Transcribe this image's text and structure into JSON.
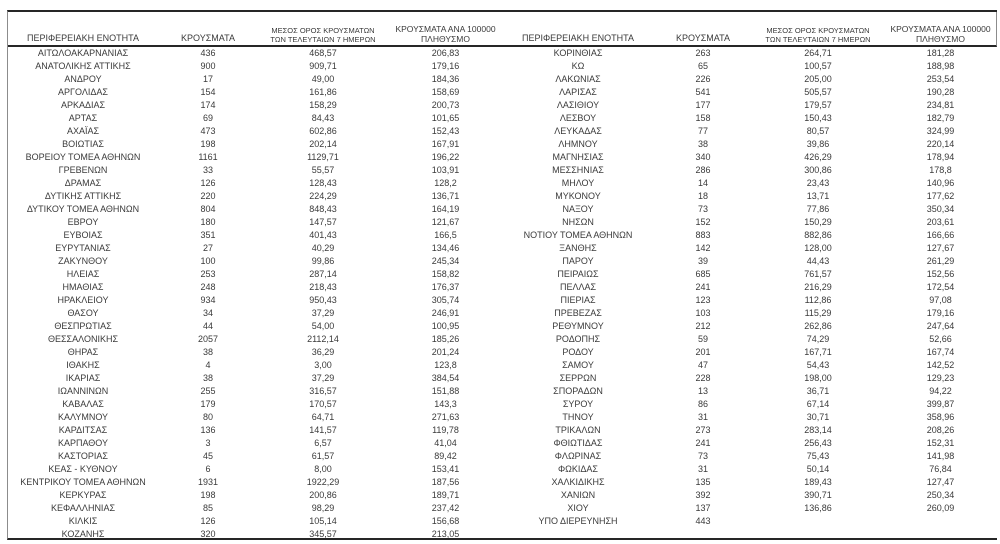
{
  "colors": {
    "background": "#ffffff",
    "text": "#3a3a3a",
    "border_heavy": "#262626",
    "border_light": "#8c8c8c"
  },
  "table": {
    "headers": {
      "region": "ΠΕΡΙΦΕΡΕΙΑΚΗ ΕΝΟΤΗΤΑ",
      "cases": "ΚΡΟΥΣΜΑΤΑ",
      "avg7_line1": "ΜΕΣΟΣ ΟΡΟΣ ΚΡΟΥΣΜΑΤΩΝ",
      "avg7_line2": "ΤΩΝ ΤΕΛΕΥΤΑΙΩΝ 7 ΗΜΕΡΩΝ",
      "per100k_line1": "ΚΡΟΥΣΜΑΤΑ ΑΝΑ 100000",
      "per100k_line2": "ΠΛΗΘΥΣΜΟ"
    },
    "left_rows": [
      [
        "ΑΙΤΩΛΟΑΚΑΡΝΑΝΙΑΣ",
        "436",
        "468,57",
        "206,83"
      ],
      [
        "ΑΝΑΤΟΛΙΚΗΣ ΑΤΤΙΚΗΣ",
        "900",
        "909,71",
        "179,16"
      ],
      [
        "ΑΝΔΡΟΥ",
        "17",
        "49,00",
        "184,36"
      ],
      [
        "ΑΡΓΟΛΙΔΑΣ",
        "154",
        "161,86",
        "158,69"
      ],
      [
        "ΑΡΚΑΔΙΑΣ",
        "174",
        "158,29",
        "200,73"
      ],
      [
        "ΑΡΤΑΣ",
        "69",
        "84,43",
        "101,65"
      ],
      [
        "ΑΧΑΪΑΣ",
        "473",
        "602,86",
        "152,43"
      ],
      [
        "ΒΟΙΩΤΙΑΣ",
        "198",
        "202,14",
        "167,91"
      ],
      [
        "ΒΟΡΕΙΟΥ ΤΟΜΕΑ ΑΘΗΝΩΝ",
        "1161",
        "1129,71",
        "196,22"
      ],
      [
        "ΓΡΕΒΕΝΩΝ",
        "33",
        "55,57",
        "103,91"
      ],
      [
        "ΔΡΑΜΑΣ",
        "126",
        "128,43",
        "128,2"
      ],
      [
        "ΔΥΤΙΚΗΣ ΑΤΤΙΚΗΣ",
        "220",
        "224,29",
        "136,71"
      ],
      [
        "ΔΥΤΙΚΟΥ ΤΟΜΕΑ ΑΘΗΝΩΝ",
        "804",
        "848,43",
        "164,19"
      ],
      [
        "ΕΒΡΟΥ",
        "180",
        "147,57",
        "121,67"
      ],
      [
        "ΕΥΒΟΙΑΣ",
        "351",
        "401,43",
        "166,5"
      ],
      [
        "ΕΥΡΥΤΑΝΙΑΣ",
        "27",
        "40,29",
        "134,46"
      ],
      [
        "ΖΑΚΥΝΘΟΥ",
        "100",
        "99,86",
        "245,34"
      ],
      [
        "ΗΛΕΙΑΣ",
        "253",
        "287,14",
        "158,82"
      ],
      [
        "ΗΜΑΘΙΑΣ",
        "248",
        "218,43",
        "176,37"
      ],
      [
        "ΗΡΑΚΛΕΙΟΥ",
        "934",
        "950,43",
        "305,74"
      ],
      [
        "ΘΑΣΟΥ",
        "34",
        "37,29",
        "246,91"
      ],
      [
        "ΘΕΣΠΡΩΤΙΑΣ",
        "44",
        "54,00",
        "100,95"
      ],
      [
        "ΘΕΣΣΑΛΟΝΙΚΗΣ",
        "2057",
        "2112,14",
        "185,26"
      ],
      [
        "ΘΗΡΑΣ",
        "38",
        "36,29",
        "201,24"
      ],
      [
        "ΙΘΑΚΗΣ",
        "4",
        "3,00",
        "123,8"
      ],
      [
        "ΙΚΑΡΙΑΣ",
        "38",
        "37,29",
        "384,54"
      ],
      [
        "ΙΩΑΝΝΙΝΩΝ",
        "255",
        "316,57",
        "151,88"
      ],
      [
        "ΚΑΒΑΛΑΣ",
        "179",
        "170,57",
        "143,3"
      ],
      [
        "ΚΑΛΥΜΝΟΥ",
        "80",
        "64,71",
        "271,63"
      ],
      [
        "ΚΑΡΔΙΤΣΑΣ",
        "136",
        "141,57",
        "119,78"
      ],
      [
        "ΚΑΡΠΑΘΟΥ",
        "3",
        "6,57",
        "41,04"
      ],
      [
        "ΚΑΣΤΟΡΙΑΣ",
        "45",
        "61,57",
        "89,42"
      ],
      [
        "ΚΕΑΣ - ΚΥΘΝΟΥ",
        "6",
        "8,00",
        "153,41"
      ],
      [
        "ΚΕΝΤΡΙΚΟΥ ΤΟΜΕΑ ΑΘΗΝΩΝ",
        "1931",
        "1922,29",
        "187,56"
      ],
      [
        "ΚΕΡΚΥΡΑΣ",
        "198",
        "200,86",
        "189,71"
      ],
      [
        "ΚΕΦΑΛΛΗΝΙΑΣ",
        "85",
        "98,29",
        "237,42"
      ],
      [
        "ΚΙΛΚΙΣ",
        "126",
        "105,14",
        "156,68"
      ],
      [
        "ΚΟΖΑΝΗΣ",
        "320",
        "345,57",
        "213,05"
      ]
    ],
    "right_rows": [
      [
        "ΚΟΡΙΝΘΙΑΣ",
        "263",
        "264,71",
        "181,28"
      ],
      [
        "ΚΩ",
        "65",
        "100,57",
        "188,98"
      ],
      [
        "ΛΑΚΩΝΙΑΣ",
        "226",
        "205,00",
        "253,54"
      ],
      [
        "ΛΑΡΙΣΑΣ",
        "541",
        "505,57",
        "190,28"
      ],
      [
        "ΛΑΣΙΘΙΟΥ",
        "177",
        "179,57",
        "234,81"
      ],
      [
        "ΛΕΣΒΟΥ",
        "158",
        "150,43",
        "182,79"
      ],
      [
        "ΛΕΥΚΑΔΑΣ",
        "77",
        "80,57",
        "324,99"
      ],
      [
        "ΛΗΜΝΟΥ",
        "38",
        "39,86",
        "220,14"
      ],
      [
        "ΜΑΓΝΗΣΙΑΣ",
        "340",
        "426,29",
        "178,94"
      ],
      [
        "ΜΕΣΣΗΝΙΑΣ",
        "286",
        "300,86",
        "178,8"
      ],
      [
        "ΜΗΛΟΥ",
        "14",
        "23,43",
        "140,96"
      ],
      [
        "ΜΥΚΟΝΟΥ",
        "18",
        "13,71",
        "177,62"
      ],
      [
        "ΝΑΞΟΥ",
        "73",
        "77,86",
        "350,34"
      ],
      [
        "ΝΗΣΩΝ",
        "152",
        "150,29",
        "203,61"
      ],
      [
        "ΝΟΤΙΟΥ ΤΟΜΕΑ ΑΘΗΝΩΝ",
        "883",
        "882,86",
        "166,66"
      ],
      [
        "ΞΑΝΘΗΣ",
        "142",
        "128,00",
        "127,67"
      ],
      [
        "ΠΑΡΟΥ",
        "39",
        "44,43",
        "261,29"
      ],
      [
        "ΠΕΙΡΑΙΩΣ",
        "685",
        "761,57",
        "152,56"
      ],
      [
        "ΠΕΛΛΑΣ",
        "241",
        "216,29",
        "172,54"
      ],
      [
        "ΠΙΕΡΙΑΣ",
        "123",
        "112,86",
        "97,08"
      ],
      [
        "ΠΡΕΒΕΖΑΣ",
        "103",
        "115,29",
        "179,16"
      ],
      [
        "ΡΕΘΥΜΝΟΥ",
        "212",
        "262,86",
        "247,64"
      ],
      [
        "ΡΟΔΟΠΗΣ",
        "59",
        "74,29",
        "52,66"
      ],
      [
        "ΡΟΔΟΥ",
        "201",
        "167,71",
        "167,74"
      ],
      [
        "ΣΑΜΟΥ",
        "47",
        "54,43",
        "142,52"
      ],
      [
        "ΣΕΡΡΩΝ",
        "228",
        "198,00",
        "129,23"
      ],
      [
        "ΣΠΟΡΑΔΩΝ",
        "13",
        "36,71",
        "94,22"
      ],
      [
        "ΣΥΡΟΥ",
        "86",
        "67,14",
        "399,87"
      ],
      [
        "ΤΗΝΟΥ",
        "31",
        "30,71",
        "358,96"
      ],
      [
        "ΤΡΙΚΑΛΩΝ",
        "273",
        "283,14",
        "208,26"
      ],
      [
        "ΦΘΙΩΤΙΔΑΣ",
        "241",
        "256,43",
        "152,31"
      ],
      [
        "ΦΛΩΡΙΝΑΣ",
        "73",
        "75,43",
        "141,98"
      ],
      [
        "ΦΩΚΙΔΑΣ",
        "31",
        "50,14",
        "76,84"
      ],
      [
        "ΧΑΛΚΙΔΙΚΗΣ",
        "135",
        "189,43",
        "127,47"
      ],
      [
        "ΧΑΝΙΩΝ",
        "392",
        "390,71",
        "250,34"
      ],
      [
        "ΧΙΟΥ",
        "137",
        "136,86",
        "260,09"
      ],
      [
        "ΥΠΟ ΔΙΕΡΕΥΝΗΣΗ",
        "443",
        "",
        ""
      ]
    ]
  }
}
